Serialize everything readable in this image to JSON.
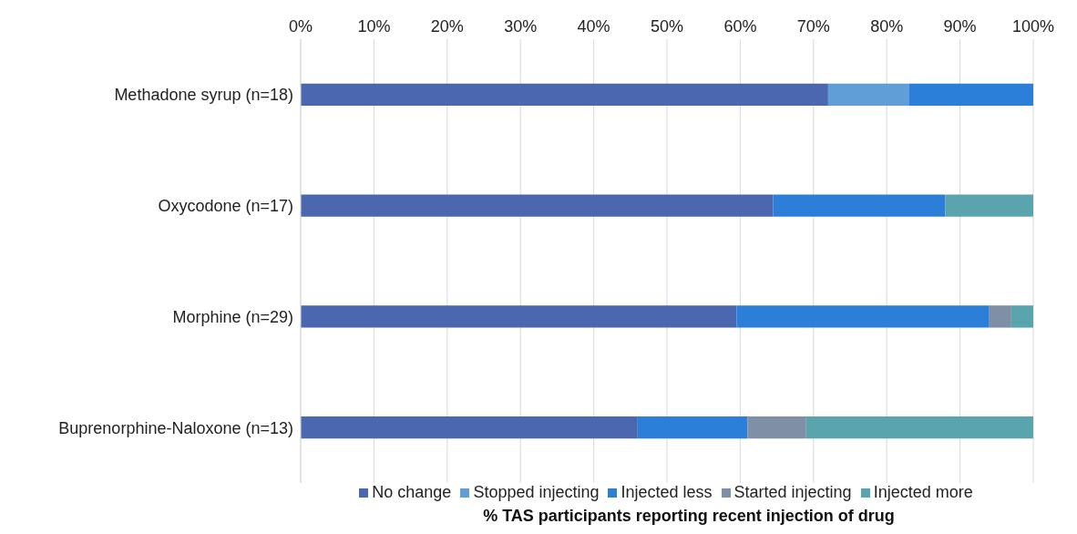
{
  "chart_data": {
    "type": "bar",
    "orientation": "horizontal",
    "stacked": true,
    "xlabel": "% TAS participants reporting recent injection of drug",
    "categories": [
      "Methadone syrup (n=18)",
      "Oxycodone (n=17)",
      "Morphine (n=29)",
      "Buprenorphine-Naloxone (n=13)"
    ],
    "series": [
      {
        "name": "No change",
        "color": "#4a67b0",
        "values": [
          72,
          64.5,
          59.5,
          46
        ]
      },
      {
        "name": "Stopped injecting",
        "color": "#5f9ed6",
        "values": [
          11,
          null,
          null,
          null
        ]
      },
      {
        "name": "Injected less",
        "color": "#2b7fd9",
        "values": [
          17,
          23.5,
          34.5,
          15
        ]
      },
      {
        "name": "Started injecting",
        "color": "#7f8fa6",
        "values": [
          null,
          null,
          3,
          8
        ]
      },
      {
        "name": "Injected more",
        "color": "#5aa4ae",
        "values": [
          null,
          12,
          3,
          31
        ]
      }
    ],
    "xlim": [
      0,
      100
    ],
    "xticks": [
      {
        "value": 0,
        "label": "0%"
      },
      {
        "value": 10,
        "label": "10%"
      },
      {
        "value": 20,
        "label": "20%"
      },
      {
        "value": 30,
        "label": "30%"
      },
      {
        "value": 40,
        "label": "40%"
      },
      {
        "value": 50,
        "label": "50%"
      },
      {
        "value": 60,
        "label": "60%"
      },
      {
        "value": 70,
        "label": "70%"
      },
      {
        "value": 80,
        "label": "80%"
      },
      {
        "value": 90,
        "label": "90%"
      },
      {
        "value": 100,
        "label": "100%"
      }
    ],
    "grid": "x",
    "legend": "bottom"
  }
}
